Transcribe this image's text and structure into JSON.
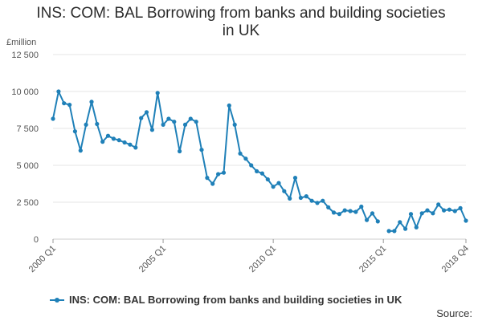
{
  "chart_data": {
    "type": "line",
    "title": "INS: COM: BAL Borrowing from banks and building societies in UK",
    "title_lines": [
      "INS: COM: BAL Borrowing from banks and building societies",
      "in UK"
    ],
    "ylabel": "£million",
    "xlabel": "",
    "ylim": [
      0,
      12500
    ],
    "yticks": [
      0,
      2500,
      5000,
      7500,
      10000,
      12500
    ],
    "ytick_labels": [
      "0",
      "2 500",
      "5 000",
      "7 500",
      "10 000",
      "12 500"
    ],
    "xticks": [
      "2000 Q1",
      "2005 Q1",
      "2010 Q1",
      "2015 Q1",
      "2018 Q4"
    ],
    "grid": true,
    "legend_position": "bottom-left",
    "color": "#1f80b8",
    "series": [
      {
        "name": "INS: COM: BAL Borrowing from banks and building societies in UK",
        "x": [
          "2000 Q1",
          "2000 Q2",
          "2000 Q3",
          "2000 Q4",
          "2001 Q1",
          "2001 Q2",
          "2001 Q3",
          "2001 Q4",
          "2002 Q1",
          "2002 Q2",
          "2002 Q3",
          "2002 Q4",
          "2003 Q1",
          "2003 Q2",
          "2003 Q3",
          "2003 Q4",
          "2004 Q1",
          "2004 Q2",
          "2004 Q3",
          "2004 Q4",
          "2005 Q1",
          "2005 Q2",
          "2005 Q3",
          "2005 Q4",
          "2006 Q1",
          "2006 Q2",
          "2006 Q3",
          "2006 Q4",
          "2007 Q1",
          "2007 Q2",
          "2007 Q3",
          "2007 Q4",
          "2008 Q1",
          "2008 Q2",
          "2008 Q3",
          "2008 Q4",
          "2009 Q1",
          "2009 Q2",
          "2009 Q3",
          "2009 Q4",
          "2010 Q1",
          "2010 Q2",
          "2010 Q3",
          "2010 Q4",
          "2011 Q1",
          "2011 Q2",
          "2011 Q3",
          "2011 Q4",
          "2012 Q1",
          "2012 Q2",
          "2012 Q3",
          "2012 Q4",
          "2013 Q1",
          "2013 Q2",
          "2013 Q3",
          "2013 Q4",
          "2014 Q1",
          "2014 Q2",
          "2014 Q3",
          "2014 Q4",
          "2015 Q1",
          "2015 Q2",
          "2015 Q3",
          "2015 Q4",
          "2016 Q1",
          "2016 Q2",
          "2016 Q3",
          "2016 Q4",
          "2017 Q1",
          "2017 Q2",
          "2017 Q3",
          "2017 Q4",
          "2018 Q1",
          "2018 Q2",
          "2018 Q3",
          "2018 Q4"
        ],
        "values": [
          8150,
          10000,
          9200,
          9100,
          7300,
          6000,
          7750,
          9300,
          7800,
          6600,
          7000,
          6800,
          6700,
          6550,
          6400,
          6200,
          8200,
          8600,
          7400,
          9900,
          7750,
          8150,
          7950,
          5950,
          7750,
          8150,
          7950,
          6050,
          4150,
          3750,
          4400,
          4500,
          9050,
          7750,
          5800,
          5450,
          5000,
          4600,
          4450,
          4050,
          3550,
          3800,
          3250,
          2750,
          4150,
          2800,
          2900,
          2600,
          2450,
          2600,
          2150,
          1800,
          1700,
          1950,
          1900,
          1850,
          2200,
          1300,
          1750,
          1200,
          null,
          550,
          550,
          1150,
          700,
          1700,
          800,
          1750,
          1950,
          1750,
          2350,
          1950,
          2000,
          1900,
          2100,
          1250
        ]
      }
    ],
    "legend_label": "INS: COM: BAL Borrowing from banks and building societies in UK",
    "source_label": "Source:"
  }
}
